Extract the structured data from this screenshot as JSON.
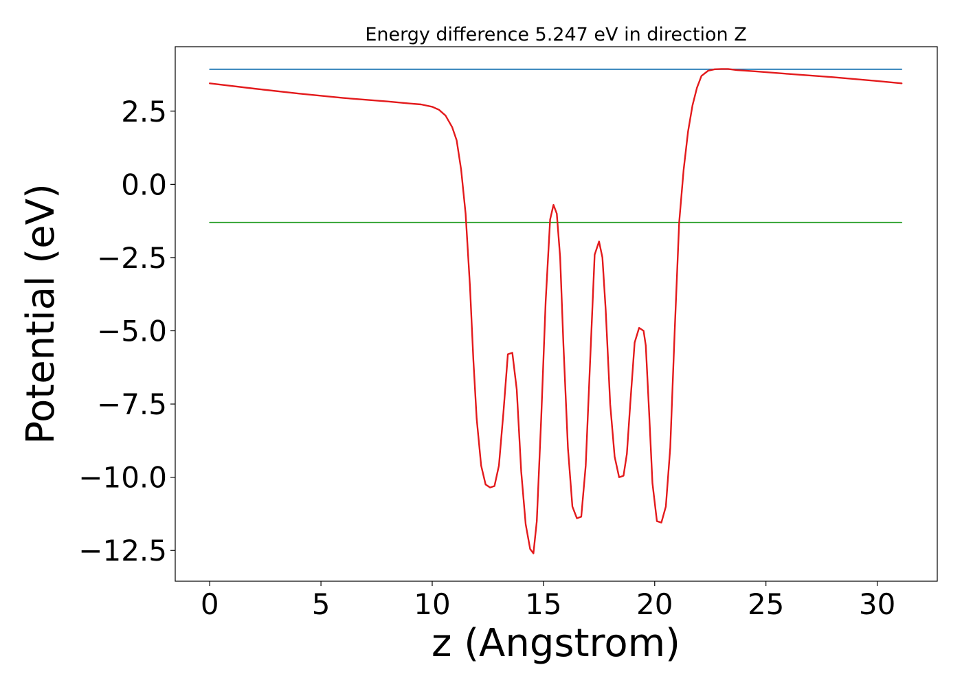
{
  "chart_data": {
    "type": "line",
    "title": "Energy difference 5.247 eV in direction Z",
    "xlabel": "z (Angstrom)",
    "ylabel": "Potential (eV)",
    "xlim": [
      -1.55,
      32.7
    ],
    "ylim": [
      -13.55,
      4.7
    ],
    "xticks": [
      0,
      5,
      10,
      15,
      20,
      25,
      30
    ],
    "xtick_labels": [
      "0",
      "5",
      "10",
      "15",
      "20",
      "25",
      "30"
    ],
    "yticks": [
      2.5,
      0.0,
      -2.5,
      -5.0,
      -7.5,
      -10.0,
      -12.5
    ],
    "ytick_labels": [
      "2.5",
      "0.0",
      "−2.5",
      "−5.0",
      "−7.5",
      "−10.0",
      "−12.5"
    ],
    "grid": false,
    "legend": "none",
    "series": [
      {
        "color": "#1f77b4",
        "x": [
          0,
          31.1
        ],
        "y": [
          3.93,
          3.93
        ]
      },
      {
        "color": "#2ca02c",
        "x": [
          0,
          31.1
        ],
        "y": [
          -1.3,
          -1.3
        ]
      },
      {
        "color": "#e31a1c",
        "x": [
          0,
          2,
          4,
          6,
          8,
          9,
          9.5,
          10,
          10.3,
          10.6,
          10.9,
          11.1,
          11.3,
          11.5,
          11.7,
          11.85,
          12.0,
          12.2,
          12.4,
          12.6,
          12.8,
          13.0,
          13.2,
          13.4,
          13.6,
          13.8,
          14.0,
          14.2,
          14.4,
          14.55,
          14.7,
          14.9,
          15.1,
          15.3,
          15.45,
          15.6,
          15.75,
          15.9,
          16.1,
          16.3,
          16.5,
          16.7,
          16.9,
          17.1,
          17.3,
          17.5,
          17.65,
          17.8,
          18.0,
          18.2,
          18.4,
          18.6,
          18.75,
          18.9,
          19.1,
          19.3,
          19.5,
          19.6,
          19.75,
          19.9,
          20.1,
          20.3,
          20.5,
          20.7,
          20.9,
          21.1,
          21.3,
          21.5,
          21.7,
          21.9,
          22.1,
          22.4,
          22.7,
          23.0,
          23.3,
          23.7,
          24.5,
          26,
          28,
          30,
          31.1
        ],
        "y": [
          3.45,
          3.27,
          3.1,
          2.95,
          2.83,
          2.76,
          2.73,
          2.65,
          2.55,
          2.35,
          1.95,
          1.5,
          0.5,
          -1.0,
          -3.5,
          -6.0,
          -8.0,
          -9.6,
          -10.25,
          -10.35,
          -10.3,
          -9.6,
          -7.8,
          -5.8,
          -5.75,
          -7.0,
          -9.8,
          -11.6,
          -12.45,
          -12.6,
          -11.5,
          -8.0,
          -4.0,
          -1.2,
          -0.7,
          -1.0,
          -2.5,
          -5.5,
          -9.0,
          -11.0,
          -11.4,
          -11.35,
          -9.6,
          -6.0,
          -2.4,
          -1.95,
          -2.5,
          -4.3,
          -7.5,
          -9.3,
          -10.0,
          -9.95,
          -9.2,
          -7.5,
          -5.4,
          -4.9,
          -5.0,
          -5.5,
          -7.8,
          -10.2,
          -11.5,
          -11.55,
          -11.0,
          -9.0,
          -5.0,
          -1.3,
          0.5,
          1.8,
          2.7,
          3.3,
          3.7,
          3.88,
          3.93,
          3.94,
          3.94,
          3.9,
          3.86,
          3.77,
          3.66,
          3.53,
          3.45
        ]
      }
    ]
  }
}
